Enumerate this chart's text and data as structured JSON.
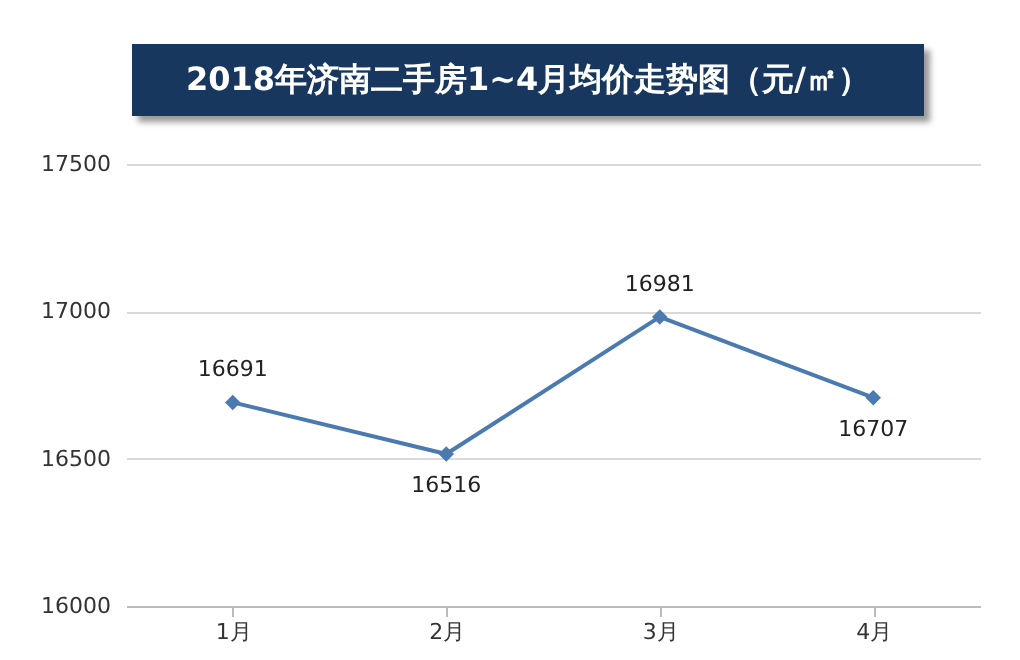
{
  "chart_data": {
    "type": "line",
    "title": "2018年济南二手房1~4月均价走势图（元/㎡）",
    "categories": [
      "1月",
      "2月",
      "3月",
      "4月"
    ],
    "series": [
      {
        "color": "#4a7ab0",
        "values": [
          16691,
          16516,
          16981,
          16707
        ]
      }
    ],
    "ylim": [
      16000,
      17500
    ],
    "yticks": [
      16000,
      16500,
      17000,
      17500
    ],
    "grid": "y",
    "data_labels": true,
    "marker": "diamond"
  }
}
